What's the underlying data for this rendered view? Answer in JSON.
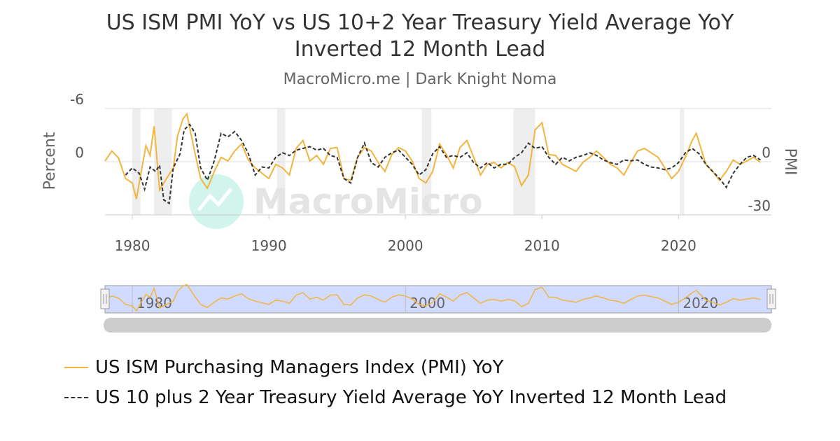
{
  "chart_data": {
    "type": "line",
    "title": "US ISM PMI YoY vs US 10+2 Year Treasury Yield Average YoY Inverted 12 Month Lead",
    "subtitle": "MacroMicro.me | Dark Knight Noma",
    "watermark": "MacroMicro",
    "y_label": "Percent",
    "y2_label": "PMI",
    "xlim": [
      1978,
      2026.8
    ],
    "xticks": [
      1980,
      1990,
      2000,
      2010,
      2020
    ],
    "navigator_xticks": [
      1980,
      2000,
      2020
    ],
    "ylim": [
      6,
      -6
    ],
    "yticks": [
      -6,
      0
    ],
    "y2lim": [
      -30,
      30
    ],
    "y2ticks": [
      0,
      -30
    ],
    "grid": true,
    "shaded_periods": [
      [
        1980.0,
        1980.6
      ],
      [
        1981.6,
        1982.9
      ],
      [
        1990.6,
        1991.2
      ],
      [
        2001.2,
        2001.9
      ],
      [
        2007.9,
        2009.5
      ],
      [
        2020.1,
        2020.4
      ]
    ],
    "shade_color": "#eeeeee",
    "series": [
      {
        "name": "US ISM Purchasing Managers Index (PMI) YoY",
        "color": "#f2b53f",
        "style": "solid",
        "axis": "y2",
        "x": [
          1978.0,
          1978.5,
          1979.0,
          1979.5,
          1980.0,
          1980.3,
          1980.7,
          1981.0,
          1981.3,
          1981.6,
          1982.0,
          1982.5,
          1983.0,
          1983.3,
          1983.7,
          1984.0,
          1984.5,
          1985.0,
          1985.5,
          1986.0,
          1986.5,
          1987.0,
          1987.5,
          1988.0,
          1988.5,
          1989.0,
          1989.5,
          1990.0,
          1990.5,
          1991.0,
          1991.5,
          1992.0,
          1992.5,
          1993.0,
          1993.5,
          1994.0,
          1994.5,
          1995.0,
          1995.5,
          1996.0,
          1996.5,
          1997.0,
          1997.5,
          1998.0,
          1998.5,
          1999.0,
          1999.5,
          2000.0,
          2000.5,
          2001.0,
          2001.5,
          2002.0,
          2002.5,
          2003.0,
          2003.5,
          2004.0,
          2004.5,
          2005.0,
          2005.5,
          2006.0,
          2006.5,
          2007.0,
          2007.5,
          2008.0,
          2008.5,
          2009.0,
          2009.5,
          2010.0,
          2010.5,
          2011.0,
          2011.5,
          2012.0,
          2012.5,
          2013.0,
          2013.5,
          2014.0,
          2014.5,
          2015.0,
          2015.5,
          2016.0,
          2016.5,
          2017.0,
          2017.5,
          2018.0,
          2018.5,
          2019.0,
          2019.5,
          2020.0,
          2020.5,
          2021.0,
          2021.3,
          2021.7,
          2022.0,
          2022.5,
          2023.0,
          2023.5,
          2024.0,
          2024.5,
          2025.0,
          2025.5,
          2026.0
        ],
        "values": [
          0.4,
          6,
          2,
          -9.5,
          -12,
          -21,
          -3.5,
          9,
          3.5,
          20,
          -16,
          -9.5,
          -3.5,
          14,
          24,
          27,
          8,
          -9.5,
          -15,
          -5.5,
          2.5,
          0.4,
          6,
          10,
          1,
          -3.5,
          -6.5,
          -9.5,
          -1.5,
          -3.5,
          -7.5,
          7.5,
          12,
          0.4,
          3.5,
          -1.5,
          7.5,
          8,
          -9.5,
          -10.5,
          2.5,
          8,
          6,
          -0.4,
          -5.5,
          4,
          8,
          6,
          0.4,
          -9.5,
          -12,
          -5.5,
          10,
          4,
          -3.5,
          8,
          12,
          2.5,
          -7.5,
          -1.5,
          -0.4,
          -3.5,
          -0.4,
          -2.8,
          -13.5,
          -7.5,
          18,
          22,
          4,
          3.5,
          -1.5,
          -3.5,
          -5.5,
          -0.4,
          2.5,
          6,
          2.5,
          -1.5,
          -3.5,
          -7.5,
          -0.4,
          6,
          7.5,
          5,
          2.5,
          -3.5,
          -9.5,
          -5.5,
          2.5,
          12,
          16,
          6,
          -1.5,
          -5.5,
          -10.5,
          -5.5,
          1,
          -1.5,
          0.4,
          2.5,
          -0.4
        ]
      },
      {
        "name": "US 10 plus 2 Year Treasury Yield Average YoY Inverted 12 Month Lead",
        "color": "#333333",
        "style": "dashed",
        "axis": "y",
        "x": [
          1979.5,
          1980.0,
          1980.5,
          1980.9,
          1981.3,
          1981.7,
          1982.0,
          1982.3,
          1982.7,
          1983.0,
          1983.5,
          1983.8,
          1984.2,
          1984.6,
          1985.0,
          1985.5,
          1986.0,
          1986.5,
          1987.0,
          1987.5,
          1988.0,
          1988.5,
          1989.0,
          1989.5,
          1990.0,
          1990.5,
          1991.0,
          1991.5,
          1992.0,
          1992.5,
          1993.0,
          1993.5,
          1994.0,
          1994.5,
          1995.0,
          1995.5,
          1996.0,
          1996.5,
          1997.0,
          1997.5,
          1998.0,
          1998.5,
          1999.0,
          1999.5,
          2000.0,
          2000.5,
          2001.0,
          2001.5,
          2002.0,
          2002.5,
          2003.0,
          2003.5,
          2004.0,
          2004.5,
          2005.0,
          2005.5,
          2006.0,
          2006.5,
          2007.0,
          2007.5,
          2008.0,
          2008.5,
          2009.0,
          2009.5,
          2010.0,
          2010.5,
          2011.0,
          2011.5,
          2012.0,
          2012.5,
          2013.0,
          2013.5,
          2014.0,
          2014.5,
          2015.0,
          2015.5,
          2016.0,
          2016.5,
          2017.0,
          2017.5,
          2018.0,
          2018.5,
          2019.0,
          2019.5,
          2020.0,
          2020.5,
          2021.0,
          2021.5,
          2022.0,
          2022.5,
          2023.0,
          2023.5,
          2024.0,
          2024.5,
          2025.0,
          2025.5,
          2026.0
        ],
        "values": [
          1.5,
          0.7,
          1.3,
          3.1,
          0.6,
          1.1,
          0.4,
          4.3,
          4.7,
          0.7,
          -0.9,
          -3.6,
          -4.2,
          -3.2,
          0.7,
          2.1,
          -0.1,
          -3.2,
          -2.8,
          -3.4,
          -2.4,
          -0.9,
          1.5,
          0.6,
          0.7,
          -0.5,
          -1.0,
          -0.7,
          -1.3,
          -1.5,
          -1.7,
          -1.3,
          -1.5,
          -0.7,
          -0.5,
          1.9,
          2.4,
          -0.5,
          -2.1,
          0.1,
          0.6,
          -0.5,
          -1.0,
          -1.3,
          -0.5,
          0.3,
          1.5,
          0.9,
          -0.9,
          -1.7,
          -0.5,
          -0.7,
          -0.5,
          -1.0,
          0.1,
          0.7,
          0.1,
          0.7,
          0.3,
          0.3,
          -0.5,
          -1.0,
          -2.1,
          -1.5,
          -1.7,
          -0.5,
          0.3,
          -0.5,
          -0.1,
          -0.5,
          -0.7,
          -1.0,
          -0.7,
          -0.2,
          0.1,
          0.3,
          -0.2,
          -0.1,
          -0.2,
          0.3,
          0.6,
          0.7,
          0.9,
          0.7,
          0.1,
          -1.0,
          -1.5,
          -0.9,
          0.3,
          1.1,
          1.9,
          2.9,
          1.3,
          0.3,
          -0.5,
          -0.7,
          -0.2
        ]
      }
    ]
  }
}
